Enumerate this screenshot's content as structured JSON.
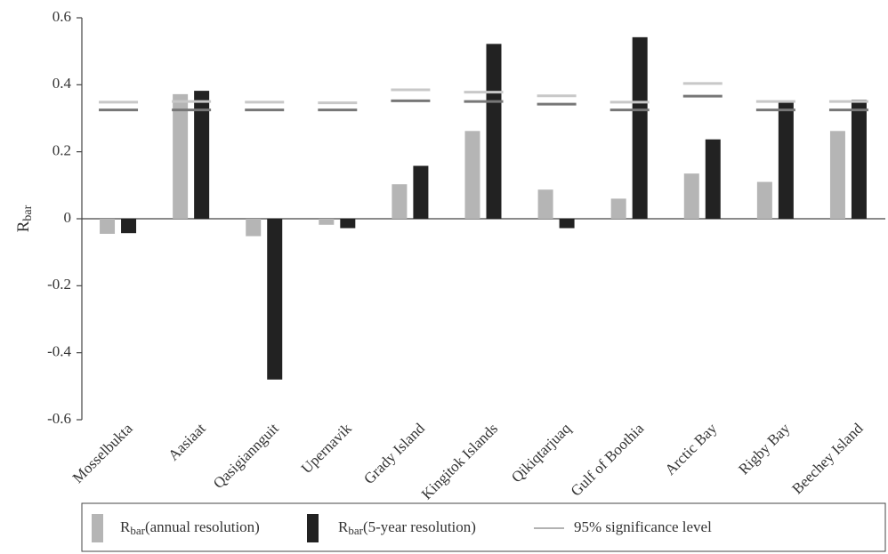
{
  "chart_data": {
    "type": "bar",
    "ylabel": "R",
    "ylabel_sub": "bar",
    "categories": [
      "Mosselbukta",
      "Aasiaat",
      "Qasigiannguit",
      "Upernavik",
      "Grady Island",
      "Kingitok Islands",
      "Qikiqtarjuaq",
      "Gulf of Boothia",
      "Arctic Bay",
      "Rigby Bay",
      "Beechey Island"
    ],
    "series": [
      {
        "name": "R",
        "name_sub": "bar",
        "name_rest": "(annual resolution)",
        "color": "#b5b5b5",
        "values": [
          -0.045,
          0.372,
          -0.052,
          -0.018,
          0.103,
          0.262,
          0.087,
          0.06,
          0.135,
          0.11,
          0.262
        ]
      },
      {
        "name": "R",
        "name_sub": "bar",
        "name_rest": "(5-year resolution)",
        "color": "#222222",
        "values": [
          -0.043,
          0.382,
          -0.48,
          -0.028,
          0.158,
          0.522,
          -0.028,
          0.542,
          0.237,
          0.35,
          0.355
        ]
      }
    ],
    "significance": {
      "name": "95% significance level",
      "color": "#999999",
      "annual": [
        0.348,
        0.35,
        0.348,
        0.346,
        0.385,
        0.378,
        0.367,
        0.348,
        0.404,
        0.35,
        0.35
      ],
      "five_year": [
        0.325,
        0.325,
        0.325,
        0.325,
        0.352,
        0.35,
        0.342,
        0.325,
        0.366,
        0.325,
        0.325
      ]
    },
    "ylim": [
      -0.6,
      0.6
    ],
    "yticks": [
      0.6,
      0.4,
      0.2,
      0,
      -0.2,
      -0.4,
      -0.6
    ],
    "grid": false,
    "legend": "bottom"
  }
}
